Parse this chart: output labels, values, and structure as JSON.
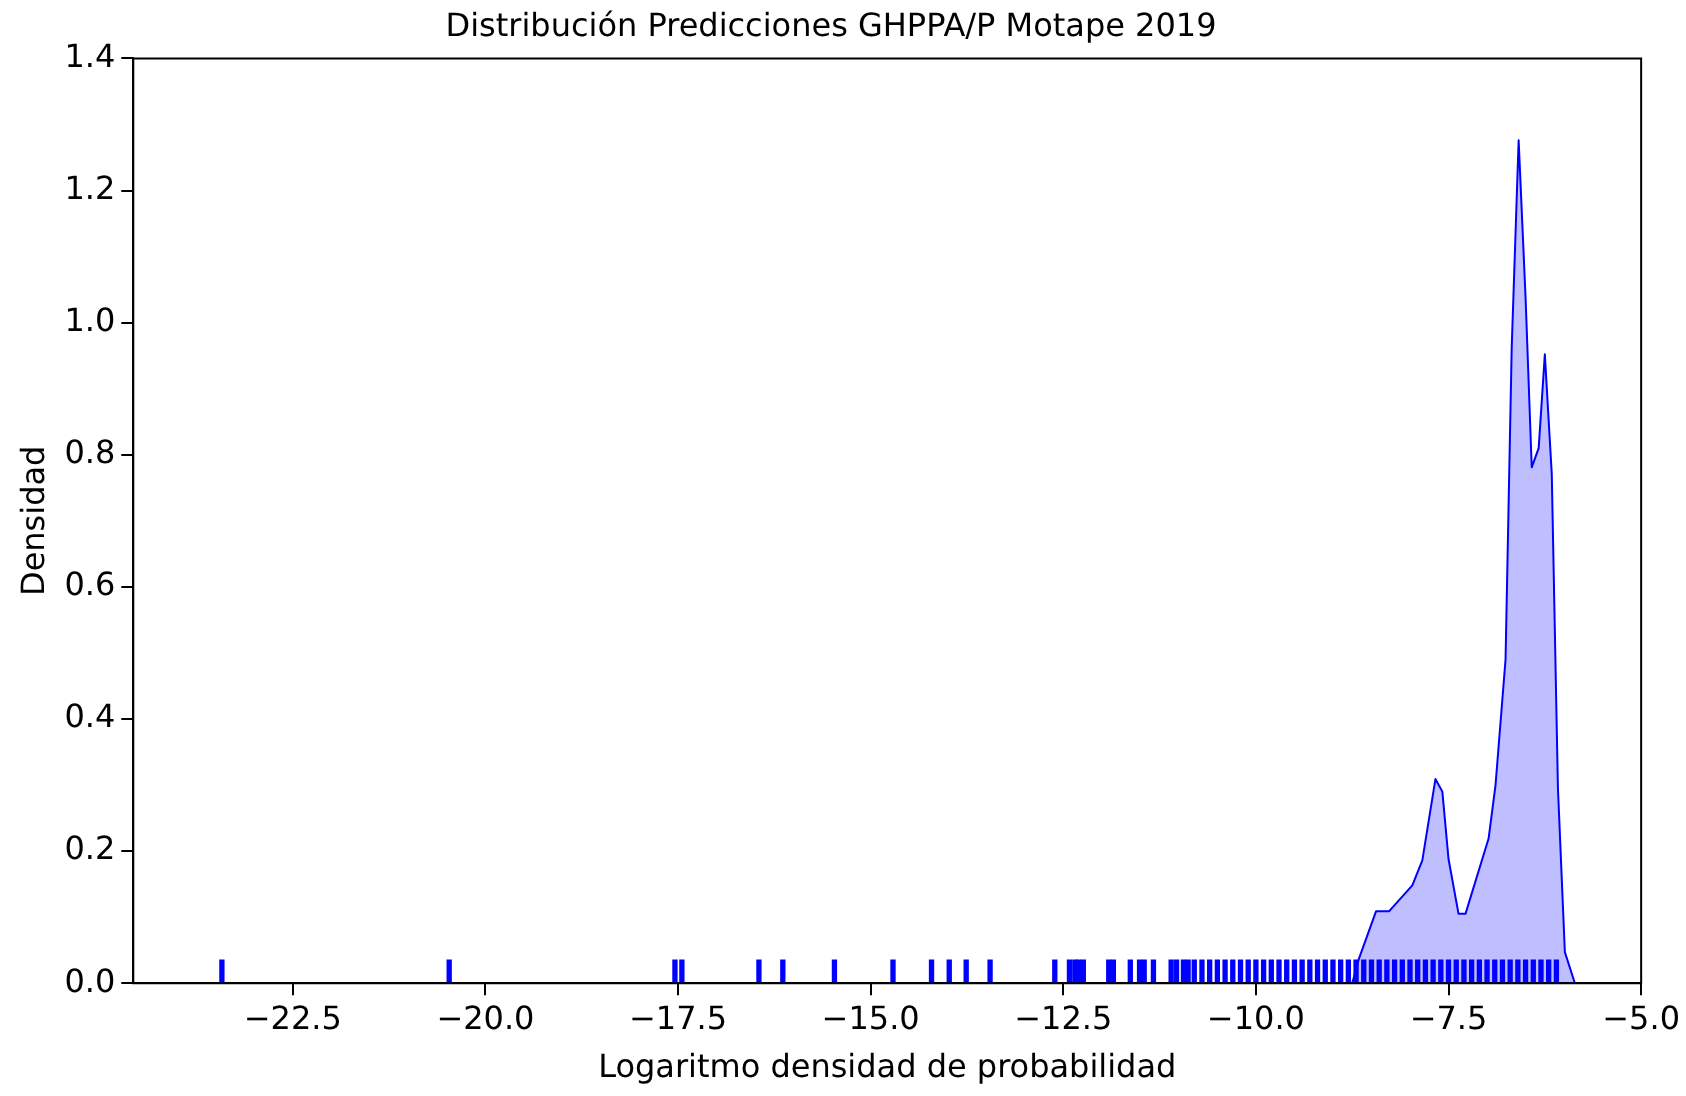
{
  "chart_data": {
    "type": "area",
    "title": "Distribución Predicciones GHPPA/P Motape 2019",
    "xlabel": "Logaritmo densidad de probabilidad",
    "ylabel": "Densidad",
    "xlim": [
      -24.57,
      -5.0
    ],
    "ylim": [
      0,
      1.4
    ],
    "xticks": [
      {
        "value": -22.5,
        "label": "−22.5"
      },
      {
        "value": -20,
        "label": "−20.0"
      },
      {
        "value": -17.5,
        "label": "−17.5"
      },
      {
        "value": -15,
        "label": "−15.0"
      },
      {
        "value": -12.5,
        "label": "−12.5"
      },
      {
        "value": -10,
        "label": "−10.0"
      },
      {
        "value": -7.5,
        "label": "−7.5"
      },
      {
        "value": -5,
        "label": "−5.0"
      }
    ],
    "yticks": [
      {
        "value": 0,
        "label": "0.0"
      },
      {
        "value": 0.2,
        "label": "0.2"
      },
      {
        "value": 0.4,
        "label": "0.4"
      },
      {
        "value": 0.6,
        "label": "0.6"
      },
      {
        "value": 0.8,
        "label": "0.8"
      },
      {
        "value": 1,
        "label": "1.0"
      },
      {
        "value": 1.2,
        "label": "1.2"
      },
      {
        "value": 1.4,
        "label": "1.4"
      }
    ],
    "grid": false,
    "legend": false,
    "series": [
      {
        "color": "#0000ff",
        "x": [
          -8.75,
          -8.66,
          -8.44,
          -8.27,
          -7.97,
          -7.84,
          -7.67,
          -7.58,
          -7.5,
          -7.37,
          -7.28,
          -6.98,
          -6.89,
          -6.76,
          -6.68,
          -6.59,
          -6.5,
          -6.42,
          -6.33,
          -6.25,
          -6.16,
          -6.08,
          -5.99,
          -5.86
        ],
        "values": [
          0,
          0.038,
          0.109,
          0.109,
          0.148,
          0.186,
          0.309,
          0.29,
          0.188,
          0.105,
          0.105,
          0.219,
          0.3,
          0.49,
          0.962,
          1.276,
          1.038,
          0.781,
          0.81,
          0.952,
          0.771,
          0.295,
          0.047,
          0
        ]
      },
      {
        "type": "bar",
        "color": "#0000ff",
        "x": [
          -23.42,
          -20.47,
          -17.54,
          -17.45,
          -16.45,
          -16.14,
          -15.47,
          -14.71,
          -14.21,
          -13.98,
          -13.76,
          -13.45,
          -12.61,
          -12.42,
          -12.35,
          -12.3,
          -12.24,
          -11.91,
          -11.85,
          -11.63,
          -11.51,
          -11.45,
          -11.33,
          -11.1,
          -11.03,
          -10.94,
          -10.88,
          -10.8,
          -10.7,
          -10.6,
          -10.5,
          -10.4,
          -10.3,
          -10.2,
          -10.1,
          -10.0,
          -9.9,
          -9.8,
          -9.7,
          -9.6,
          -9.5,
          -9.4,
          -9.3,
          -9.2,
          -9.1,
          -9.0,
          -8.9,
          -8.8,
          -8.7,
          -8.6,
          -8.5,
          -8.4,
          -8.3,
          -8.2,
          -8.1,
          -8.0,
          -7.9,
          -7.8,
          -7.7,
          -7.6,
          -7.5,
          -7.4,
          -7.3,
          -7.2,
          -7.1,
          -7.0,
          -6.9,
          -6.8,
          -6.7,
          -6.6,
          -6.5,
          -6.4,
          -6.3,
          -6.2,
          -6.1
        ],
        "values": [
          0.035,
          0.035,
          0.035,
          0.035,
          0.035,
          0.035,
          0.035,
          0.035,
          0.035,
          0.035,
          0.035,
          0.035,
          0.035,
          0.035,
          0.035,
          0.035,
          0.035,
          0.035,
          0.035,
          0.035,
          0.035,
          0.035,
          0.035,
          0.035,
          0.035,
          0.035,
          0.035,
          0.035,
          0.035,
          0.035,
          0.035,
          0.035,
          0.035,
          0.035,
          0.035,
          0.035,
          0.035,
          0.035,
          0.035,
          0.035,
          0.035,
          0.035,
          0.035,
          0.035,
          0.035,
          0.035,
          0.035,
          0.035,
          0.035,
          0.035,
          0.035,
          0.035,
          0.035,
          0.035,
          0.035,
          0.035,
          0.035,
          0.035,
          0.035,
          0.035,
          0.035,
          0.035,
          0.035,
          0.035,
          0.035,
          0.035,
          0.035,
          0.035,
          0.035,
          0.035,
          0.035,
          0.035,
          0.035,
          0.035,
          0.035
        ]
      }
    ]
  }
}
